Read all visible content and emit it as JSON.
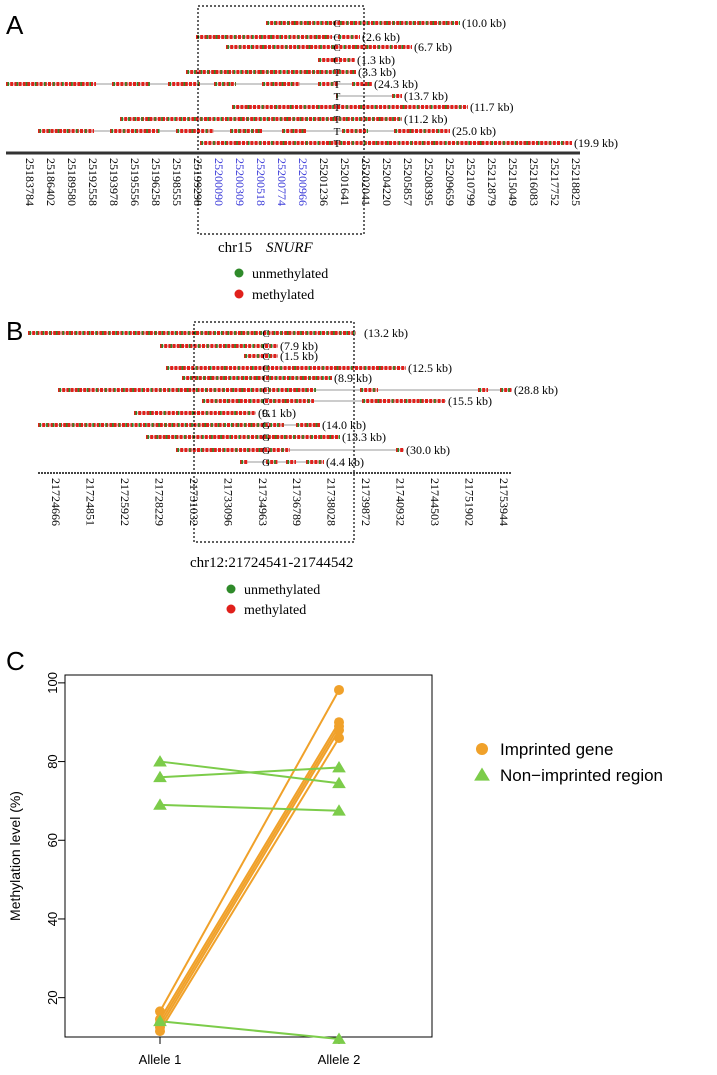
{
  "panel_a": {
    "letter": "A",
    "region_label": "chr15",
    "gene_label": "SNURF",
    "legend": {
      "unmethylated": "unmethylated",
      "methylated": "methylated"
    },
    "tick_labels": [
      "25183784",
      "25186402",
      "25189580",
      "25192558",
      "25193978",
      "25195556",
      "25196258",
      "25198555",
      "25199298",
      "25200090",
      "25200309",
      "25200518",
      "25200774",
      "25200966",
      "25201236",
      "25201641",
      "25202041",
      "25204220",
      "25205857",
      "25208395",
      "25209659",
      "25210799",
      "25212879",
      "25215049",
      "25216083",
      "25217752",
      "25218825"
    ],
    "highlight_ticks": [
      "25200090",
      "25200309",
      "25200518",
      "25200774",
      "25200966"
    ],
    "reads": [
      {
        "allele": "C",
        "size": "(10.0 kb)"
      },
      {
        "allele": "C",
        "size": "(2.6 kb)"
      },
      {
        "allele": "C",
        "size": "(6.7 kb)"
      },
      {
        "allele": "C",
        "size": "(1.3 kb)"
      },
      {
        "allele": "T",
        "size": "(3.3 kb)"
      },
      {
        "allele": "T",
        "size": "(24.3 kb)"
      },
      {
        "allele": "T",
        "size": "(13.7 kb)"
      },
      {
        "allele": "T",
        "size": "(11.7 kb)"
      },
      {
        "allele": "T",
        "size": "(11.2 kb)"
      },
      {
        "allele": "T",
        "size": "(25.0 kb)"
      },
      {
        "allele": "T",
        "size": "(19.9 kb)"
      }
    ]
  },
  "panel_b": {
    "letter": "B",
    "region_label": "chr12:21724541-21744542",
    "legend": {
      "unmethylated": "unmethylated",
      "methylated": "methylated"
    },
    "tick_labels": [
      "21724666",
      "21724851",
      "21725922",
      "21728229",
      "21731032",
      "21733096",
      "21734963",
      "21736789",
      "21738028",
      "21739872",
      "21740932",
      "21744503",
      "21751902",
      "21753944"
    ],
    "reads": [
      {
        "allele": "C",
        "size": "(13.2 kb)"
      },
      {
        "allele": "C",
        "size": "(7.9 kb)"
      },
      {
        "allele": "C",
        "size": "(1.5 kb)"
      },
      {
        "allele": "C",
        "size": "(12.5 kb)"
      },
      {
        "allele": "C",
        "size": "(8.9 kb)"
      },
      {
        "allele": "C",
        "size": "(28.8 kb)"
      },
      {
        "allele": "C",
        "size": "(15.5 kb)"
      },
      {
        "allele": "G",
        "size": "(9.1 kb)"
      },
      {
        "allele": "G",
        "size": "(14.0 kb)"
      },
      {
        "allele": "G",
        "size": "(13.3 kb)"
      },
      {
        "allele": "G",
        "size": "(30.0 kb)"
      },
      {
        "allele": "G",
        "size": "(4.4 kb)"
      }
    ]
  },
  "colors": {
    "methylated": "#e0201b",
    "unmethylated": "#2f8a2a",
    "imprinted": "#f0a12a",
    "non_imprinted": "#7ccc4a",
    "highlight": "#3a3ad8"
  },
  "chart_data": {
    "type": "line",
    "panel_letter": "C",
    "categories": [
      "Allele 1",
      "Allele 2"
    ],
    "ylabel": "Methylation level (%)",
    "xlabel": "",
    "ylim": [
      10,
      100
    ],
    "yticks": [
      20,
      40,
      60,
      80,
      100
    ],
    "legend_position": "right",
    "series": [
      {
        "name": "Imprinted gene",
        "group": "imprinted",
        "values": [
          16.5,
          98.2
        ]
      },
      {
        "name": "Imprinted gene",
        "group": "imprinted",
        "values": [
          14.5,
          90.0
        ]
      },
      {
        "name": "Imprinted gene",
        "group": "imprinted",
        "values": [
          13.5,
          89.0
        ]
      },
      {
        "name": "Imprinted gene",
        "group": "imprinted",
        "values": [
          12.5,
          88.0
        ]
      },
      {
        "name": "Imprinted gene",
        "group": "imprinted",
        "values": [
          11.5,
          86.0
        ]
      },
      {
        "name": "Non-imprinted region",
        "group": "non_imprinted",
        "values": [
          80.0,
          74.5
        ]
      },
      {
        "name": "Non-imprinted region",
        "group": "non_imprinted",
        "values": [
          76.0,
          78.5
        ]
      },
      {
        "name": "Non-imprinted region",
        "group": "non_imprinted",
        "values": [
          69.0,
          67.5
        ]
      },
      {
        "name": "Non-imprinted region",
        "group": "non_imprinted",
        "values": [
          14.0,
          9.5
        ]
      }
    ],
    "legend": [
      {
        "label": "Imprinted gene",
        "marker": "circle",
        "group": "imprinted"
      },
      {
        "label": "Non−imprinted region",
        "marker": "triangle",
        "group": "non_imprinted"
      }
    ]
  }
}
